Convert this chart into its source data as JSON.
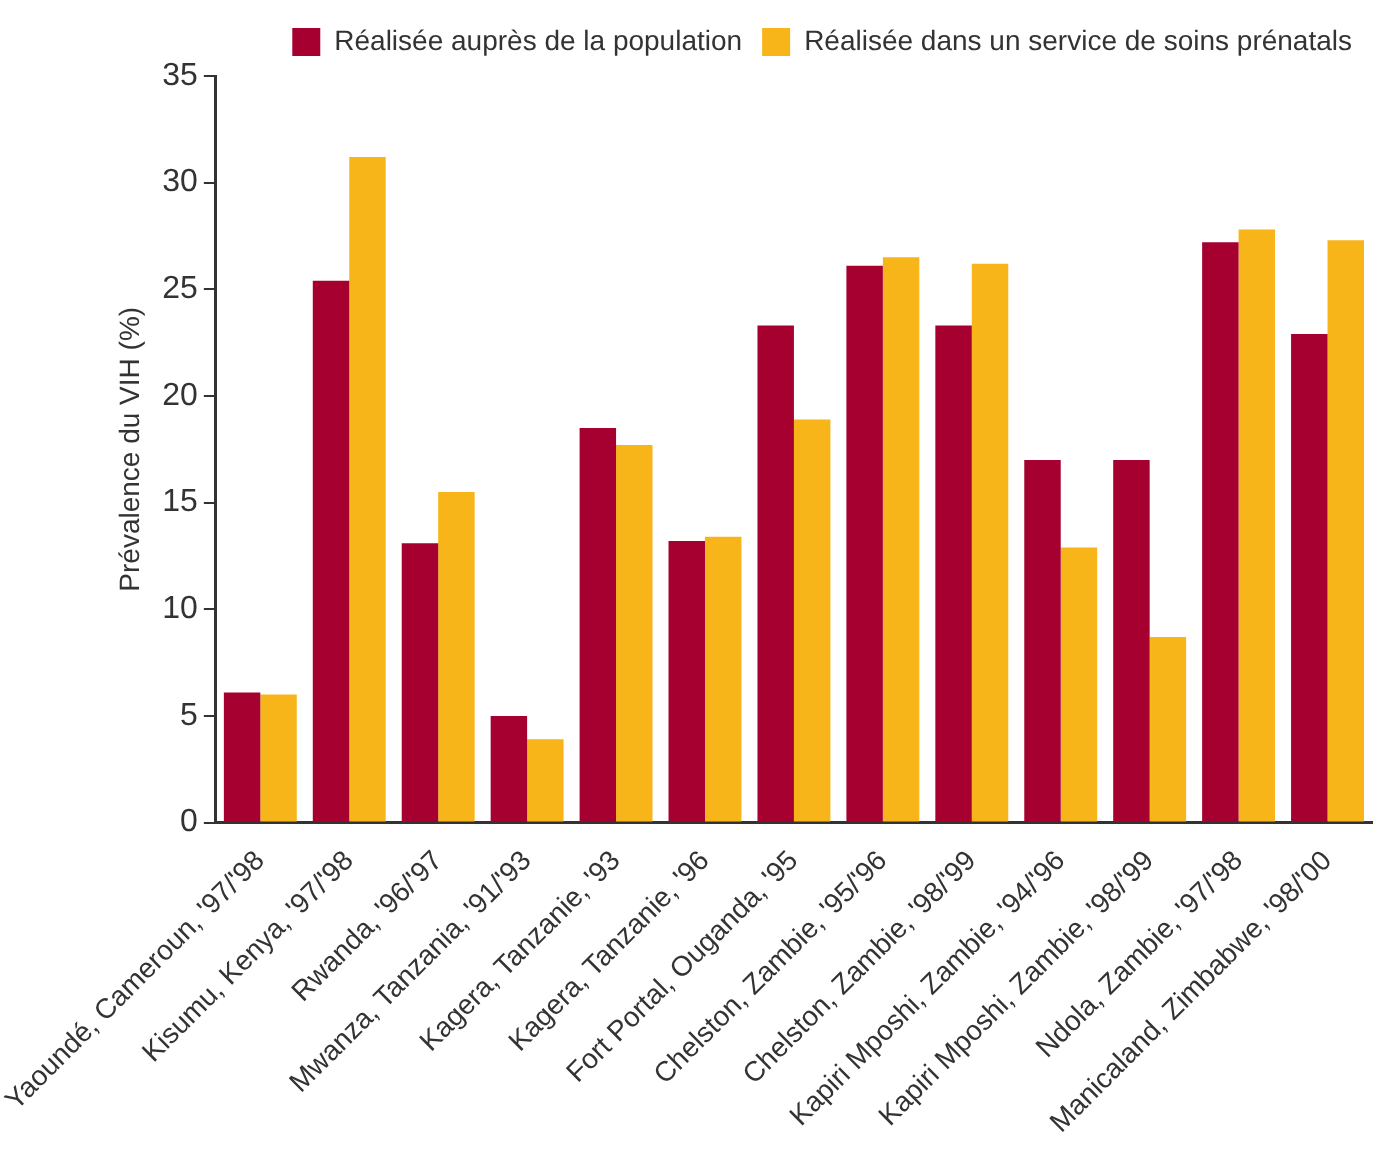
{
  "chart_data": {
    "type": "bar",
    "ylabel": "Prévalence du VIH (%)",
    "categories": [
      "Yaoundé, Cameroun, '97/'98",
      "Kisumu, Kenya, '97/'98",
      "Rwanda, '96/'97",
      "Mwanza, Tanzania, '91/'93",
      "Kagera, Tanzanie, '93",
      "Kagera, Tanzanie, '96",
      "Fort Portal, Ouganda, '95",
      "Chelston, Zambie, '95/'96",
      "Chelston, Zambie, '98/'99",
      "Kapiri Mposhi, Zambie, '94/'96",
      "Kapiri Mposhi, Zambie, '98/'99",
      "Ndola, Zambie, '97/'98",
      "Manicaland, Zimbabwe, '98/'00"
    ],
    "series": [
      {
        "name": "Réalisée auprès de la population",
        "color": "#a50030",
        "values": [
          6.1,
          25.4,
          13.1,
          5.0,
          18.5,
          13.2,
          23.3,
          26.1,
          23.3,
          17.0,
          17.0,
          27.2,
          22.9
        ]
      },
      {
        "name": "Réalisée dans un service de soins prénatals",
        "color": "#f7b519",
        "values": [
          6.0,
          31.2,
          15.5,
          3.9,
          17.7,
          13.4,
          18.9,
          26.5,
          26.2,
          12.9,
          8.7,
          27.8,
          27.3
        ]
      }
    ],
    "ylim": [
      0,
      35
    ],
    "yticks": [
      0,
      5,
      10,
      15,
      20,
      25,
      30,
      35
    ],
    "grid": false,
    "legend": "top right"
  }
}
